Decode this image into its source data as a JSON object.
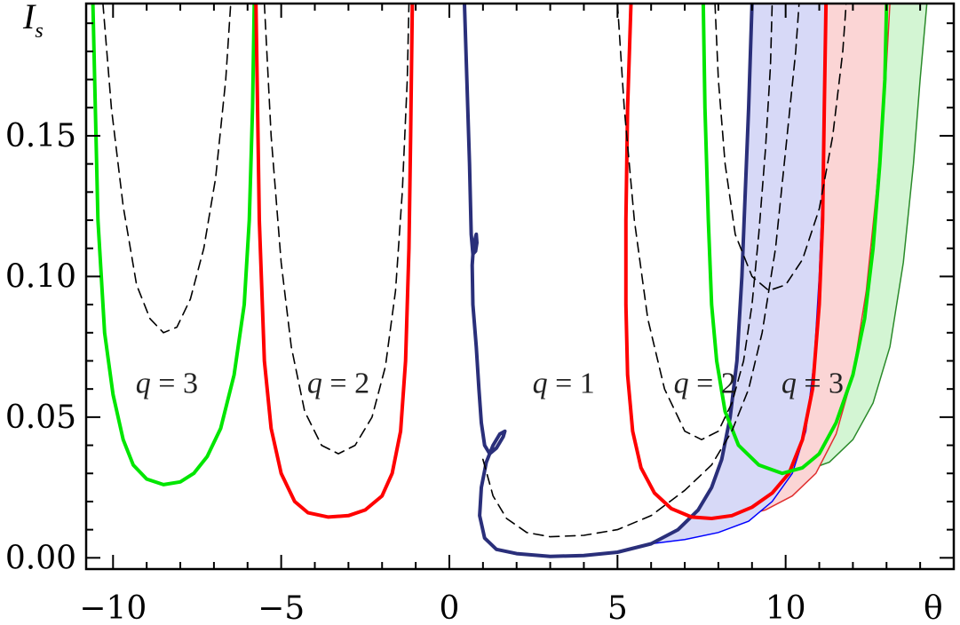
{
  "chart_data": {
    "type": "line",
    "title": "",
    "xlabel": "θ",
    "ylabel_main": "I",
    "ylabel_sub": "s",
    "xlim": [
      -10.8,
      15.0
    ],
    "ylim": [
      -0.004,
      0.197
    ],
    "xticks": [
      -10,
      -5,
      0,
      5,
      10
    ],
    "xtick_labels": [
      "−10",
      "−5",
      "0",
      "5",
      "10"
    ],
    "yticks": [
      0.0,
      0.05,
      0.1,
      0.15
    ],
    "ytick_labels": [
      "0.00",
      "0.05",
      "0.10",
      "0.15"
    ],
    "grid": false,
    "colors": {
      "q1": "#2a2f7a",
      "q2": "#ff0000",
      "q3": "#00e600",
      "dashed": "#000000",
      "band_q1": "#d7d9f7",
      "band_q2": "#fbd5d5",
      "band_q3": "#d3f5d3",
      "band_q1_edge": "#0000ff",
      "band_q2_edge": "#e03030",
      "band_q3_edge": "#2a8a2a"
    },
    "series": [
      {
        "group": "q3",
        "style": "solid",
        "points": [
          [
            -10.6,
            0.197
          ],
          [
            -10.45,
            0.12
          ],
          [
            -10.25,
            0.08
          ],
          [
            -10.0,
            0.058
          ],
          [
            -9.7,
            0.042
          ],
          [
            -9.4,
            0.033
          ],
          [
            -9.0,
            0.028
          ],
          [
            -8.5,
            0.026
          ],
          [
            -8.0,
            0.027
          ],
          [
            -7.6,
            0.03
          ],
          [
            -7.2,
            0.036
          ],
          [
            -6.8,
            0.046
          ],
          [
            -6.4,
            0.065
          ],
          [
            -6.1,
            0.09
          ],
          [
            -5.95,
            0.12
          ],
          [
            -5.85,
            0.16
          ],
          [
            -5.8,
            0.197
          ]
        ]
      },
      {
        "group": "q2",
        "style": "solid",
        "points": [
          [
            -5.75,
            0.197
          ],
          [
            -5.65,
            0.12
          ],
          [
            -5.5,
            0.07
          ],
          [
            -5.3,
            0.046
          ],
          [
            -5.0,
            0.03
          ],
          [
            -4.6,
            0.02
          ],
          [
            -4.2,
            0.016
          ],
          [
            -3.6,
            0.0145
          ],
          [
            -3.0,
            0.015
          ],
          [
            -2.5,
            0.017
          ],
          [
            -2.0,
            0.022
          ],
          [
            -1.7,
            0.03
          ],
          [
            -1.45,
            0.045
          ],
          [
            -1.3,
            0.07
          ],
          [
            -1.2,
            0.11
          ],
          [
            -1.15,
            0.15
          ],
          [
            -1.1,
            0.197
          ]
        ]
      },
      {
        "group": "dashed",
        "style": "dashed",
        "points": [
          [
            -10.3,
            0.197
          ],
          [
            -10.05,
            0.16
          ],
          [
            -9.7,
            0.125
          ],
          [
            -9.3,
            0.097
          ],
          [
            -8.9,
            0.085
          ],
          [
            -8.5,
            0.08
          ],
          [
            -8.1,
            0.082
          ],
          [
            -7.7,
            0.092
          ],
          [
            -7.3,
            0.11
          ],
          [
            -6.95,
            0.135
          ],
          [
            -6.65,
            0.17
          ],
          [
            -6.5,
            0.197
          ]
        ]
      },
      {
        "group": "dashed",
        "style": "dashed",
        "points": [
          [
            -5.5,
            0.197
          ],
          [
            -5.3,
            0.15
          ],
          [
            -5.0,
            0.105
          ],
          [
            -4.7,
            0.075
          ],
          [
            -4.3,
            0.052
          ],
          [
            -3.8,
            0.04
          ],
          [
            -3.3,
            0.037
          ],
          [
            -2.8,
            0.04
          ],
          [
            -2.3,
            0.05
          ],
          [
            -1.9,
            0.068
          ],
          [
            -1.6,
            0.095
          ],
          [
            -1.4,
            0.13
          ],
          [
            -1.25,
            0.17
          ],
          [
            -1.2,
            0.197
          ]
        ]
      },
      {
        "group": "q1",
        "style": "solid",
        "points": [
          [
            0.45,
            0.197
          ],
          [
            0.52,
            0.17
          ],
          [
            0.6,
            0.14
          ],
          [
            0.65,
            0.115
          ],
          [
            0.7,
            0.108
          ],
          [
            0.78,
            0.109
          ],
          [
            0.82,
            0.112
          ],
          [
            0.8,
            0.115
          ],
          [
            0.72,
            0.111
          ],
          [
            0.68,
            0.104
          ],
          [
            0.7,
            0.09
          ],
          [
            0.8,
            0.075
          ],
          [
            0.88,
            0.06
          ],
          [
            0.95,
            0.048
          ],
          [
            1.05,
            0.04
          ],
          [
            1.2,
            0.037
          ],
          [
            1.4,
            0.039
          ],
          [
            1.6,
            0.043
          ],
          [
            1.65,
            0.045
          ],
          [
            1.5,
            0.044
          ],
          [
            1.3,
            0.04
          ],
          [
            1.1,
            0.034
          ],
          [
            0.95,
            0.025
          ],
          [
            0.9,
            0.015
          ],
          [
            1.05,
            0.007
          ],
          [
            1.4,
            0.003
          ],
          [
            2.0,
            0.0015
          ],
          [
            3.0,
            0.0005
          ],
          [
            4.0,
            0.0008
          ],
          [
            5.0,
            0.002
          ],
          [
            6.0,
            0.005
          ],
          [
            6.8,
            0.01
          ],
          [
            7.4,
            0.017
          ],
          [
            7.8,
            0.025
          ],
          [
            8.1,
            0.035
          ],
          [
            8.35,
            0.05
          ],
          [
            8.55,
            0.07
          ],
          [
            8.7,
            0.1
          ],
          [
            8.8,
            0.13
          ],
          [
            8.9,
            0.16
          ],
          [
            9.0,
            0.197
          ]
        ]
      },
      {
        "group": "q2",
        "style": "solid",
        "points": [
          [
            5.4,
            0.197
          ],
          [
            5.3,
            0.16
          ],
          [
            5.25,
            0.12
          ],
          [
            5.25,
            0.09
          ],
          [
            5.3,
            0.065
          ],
          [
            5.45,
            0.045
          ],
          [
            5.7,
            0.032
          ],
          [
            6.1,
            0.023
          ],
          [
            6.6,
            0.0175
          ],
          [
            7.2,
            0.0145
          ],
          [
            7.8,
            0.014
          ],
          [
            8.4,
            0.015
          ],
          [
            9.0,
            0.018
          ],
          [
            9.6,
            0.023
          ],
          [
            10.1,
            0.03
          ],
          [
            10.5,
            0.042
          ],
          [
            10.8,
            0.06
          ],
          [
            11.0,
            0.09
          ],
          [
            11.1,
            0.12
          ],
          [
            11.15,
            0.16
          ],
          [
            11.2,
            0.197
          ]
        ]
      },
      {
        "group": "q3",
        "style": "solid",
        "points": [
          [
            7.55,
            0.197
          ],
          [
            7.6,
            0.16
          ],
          [
            7.7,
            0.12
          ],
          [
            7.8,
            0.09
          ],
          [
            7.95,
            0.07
          ],
          [
            8.2,
            0.052
          ],
          [
            8.6,
            0.04
          ],
          [
            9.2,
            0.033
          ],
          [
            9.9,
            0.03
          ],
          [
            10.5,
            0.032
          ],
          [
            11.0,
            0.037
          ],
          [
            11.5,
            0.048
          ],
          [
            12.0,
            0.065
          ],
          [
            12.35,
            0.085
          ],
          [
            12.6,
            0.11
          ],
          [
            12.8,
            0.14
          ],
          [
            12.95,
            0.17
          ],
          [
            13.0,
            0.197
          ]
        ]
      },
      {
        "group": "dashed",
        "style": "dashed",
        "points": [
          [
            1.0,
            0.035
          ],
          [
            1.3,
            0.022
          ],
          [
            1.7,
            0.014
          ],
          [
            2.3,
            0.009
          ],
          [
            3.0,
            0.0075
          ],
          [
            4.0,
            0.008
          ],
          [
            5.0,
            0.01
          ],
          [
            6.0,
            0.015
          ],
          [
            7.0,
            0.024
          ],
          [
            7.8,
            0.033
          ],
          [
            8.4,
            0.045
          ],
          [
            8.9,
            0.06
          ],
          [
            9.3,
            0.08
          ],
          [
            9.7,
            0.11
          ],
          [
            10.0,
            0.145
          ],
          [
            10.3,
            0.18
          ],
          [
            10.4,
            0.197
          ]
        ]
      },
      {
        "group": "dashed",
        "style": "dashed",
        "points": [
          [
            5.0,
            0.197
          ],
          [
            5.2,
            0.16
          ],
          [
            5.5,
            0.12
          ],
          [
            5.9,
            0.085
          ],
          [
            6.4,
            0.06
          ],
          [
            7.0,
            0.045
          ],
          [
            7.5,
            0.042
          ],
          [
            8.0,
            0.045
          ],
          [
            8.4,
            0.055
          ],
          [
            8.75,
            0.07
          ],
          [
            9.0,
            0.09
          ],
          [
            9.2,
            0.115
          ],
          [
            9.4,
            0.145
          ],
          [
            9.55,
            0.175
          ],
          [
            9.6,
            0.197
          ]
        ]
      },
      {
        "group": "dashed",
        "style": "dashed",
        "points": [
          [
            7.9,
            0.197
          ],
          [
            8.0,
            0.17
          ],
          [
            8.2,
            0.14
          ],
          [
            8.5,
            0.115
          ],
          [
            9.0,
            0.1
          ],
          [
            9.5,
            0.095
          ],
          [
            10.0,
            0.097
          ],
          [
            10.5,
            0.106
          ],
          [
            11.0,
            0.124
          ],
          [
            11.4,
            0.15
          ],
          [
            11.7,
            0.18
          ],
          [
            11.8,
            0.197
          ]
        ]
      }
    ],
    "bands": [
      {
        "group": "q3",
        "upper_edge": [
          [
            9.9,
            0.03
          ],
          [
            10.5,
            0.032
          ],
          [
            11.0,
            0.037
          ],
          [
            11.5,
            0.048
          ],
          [
            12.0,
            0.065
          ],
          [
            12.35,
            0.085
          ],
          [
            12.6,
            0.11
          ],
          [
            12.8,
            0.14
          ],
          [
            12.95,
            0.17
          ],
          [
            13.0,
            0.197
          ]
        ],
        "lower_edge": [
          [
            9.9,
            0.03
          ],
          [
            10.6,
            0.031
          ],
          [
            11.3,
            0.034
          ],
          [
            12.0,
            0.042
          ],
          [
            12.6,
            0.055
          ],
          [
            13.1,
            0.075
          ],
          [
            13.5,
            0.105
          ],
          [
            13.8,
            0.14
          ],
          [
            14.0,
            0.17
          ],
          [
            14.2,
            0.197
          ]
        ]
      },
      {
        "group": "q2",
        "upper_edge": [
          [
            7.8,
            0.014
          ],
          [
            8.4,
            0.015
          ],
          [
            9.0,
            0.018
          ],
          [
            9.6,
            0.023
          ],
          [
            10.1,
            0.03
          ],
          [
            10.5,
            0.042
          ],
          [
            10.8,
            0.06
          ],
          [
            11.0,
            0.09
          ],
          [
            11.1,
            0.12
          ],
          [
            11.15,
            0.16
          ],
          [
            11.2,
            0.197
          ]
        ],
        "lower_edge": [
          [
            7.8,
            0.014
          ],
          [
            8.6,
            0.0145
          ],
          [
            9.4,
            0.017
          ],
          [
            10.2,
            0.022
          ],
          [
            10.9,
            0.03
          ],
          [
            11.5,
            0.044
          ],
          [
            12.0,
            0.065
          ],
          [
            12.4,
            0.095
          ],
          [
            12.7,
            0.13
          ],
          [
            12.95,
            0.165
          ],
          [
            13.1,
            0.197
          ]
        ]
      },
      {
        "group": "q1",
        "upper_edge": [
          [
            6.0,
            0.005
          ],
          [
            6.8,
            0.01
          ],
          [
            7.4,
            0.017
          ],
          [
            7.8,
            0.025
          ],
          [
            8.1,
            0.035
          ],
          [
            8.35,
            0.05
          ],
          [
            8.55,
            0.07
          ],
          [
            8.7,
            0.1
          ],
          [
            8.8,
            0.13
          ],
          [
            8.9,
            0.16
          ],
          [
            9.0,
            0.197
          ]
        ],
        "lower_edge": [
          [
            6.0,
            0.005
          ],
          [
            7.0,
            0.0065
          ],
          [
            8.0,
            0.009
          ],
          [
            8.9,
            0.013
          ],
          [
            9.6,
            0.02
          ],
          [
            10.2,
            0.03
          ],
          [
            10.6,
            0.045
          ],
          [
            10.85,
            0.07
          ],
          [
            11.0,
            0.1
          ],
          [
            11.1,
            0.13
          ],
          [
            11.15,
            0.16
          ],
          [
            11.2,
            0.197
          ]
        ]
      }
    ],
    "annotations": [
      {
        "text": "q = 3",
        "x": -8.4,
        "y": 0.0625
      },
      {
        "text": "q = 2",
        "x": -3.3,
        "y": 0.0625
      },
      {
        "text": "q = 1",
        "x": 3.4,
        "y": 0.0625
      },
      {
        "text": "q = 2",
        "x": 7.6,
        "y": 0.0625
      },
      {
        "text": "q = 3",
        "x": 10.8,
        "y": 0.0625
      }
    ]
  }
}
